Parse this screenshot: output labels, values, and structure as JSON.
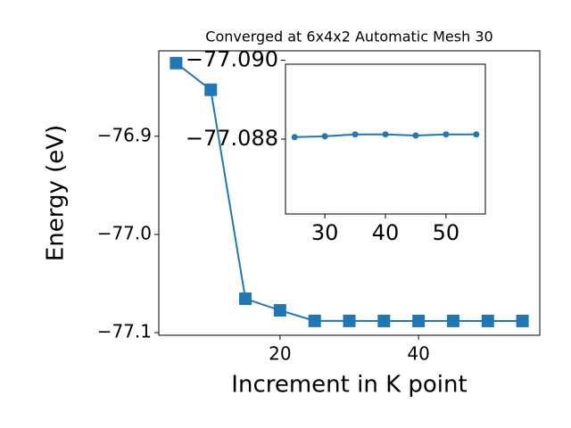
{
  "chart_data": [
    {
      "type": "line",
      "title": "Converged at 6x4x2 Automatic Mesh 30",
      "x_label": "Increment in K point",
      "y_label": "Energy (eV)",
      "x": [
        5,
        10,
        15,
        20,
        25,
        30,
        35,
        40,
        45,
        50,
        55
      ],
      "series": [
        {
          "color": "#1f77b4",
          "marker": "square",
          "values": [
            -76.8255,
            -76.8527,
            -77.0655,
            -77.0773,
            -77.08805,
            -77.08807,
            -77.08812,
            -77.08812,
            -77.08809,
            -77.08812,
            -77.08812
          ]
        }
      ],
      "xlim": [
        2.5,
        57.5
      ],
      "ylim": [
        -77.1027,
        -76.813
      ],
      "xticks": [
        20,
        40
      ],
      "yticks": [
        {
          "value": -76.9,
          "label": "−76.9"
        },
        {
          "value": -77.0,
          "label": "−77.0"
        },
        {
          "value": -77.1,
          "label": "−77.1"
        }
      ]
    },
    {
      "type": "line",
      "x": [
        25,
        30,
        35,
        40,
        45,
        50,
        55
      ],
      "series": [
        {
          "color": "#1f77b4",
          "marker": "circle",
          "values": [
            -77.08805,
            -77.08807,
            -77.08812,
            -77.08812,
            -77.08809,
            -77.08812,
            -77.08812
          ]
        }
      ],
      "xlim": [
        23.5,
        56.5
      ],
      "ylim": [
        -77.0861,
        -77.0899
      ],
      "xticks": [
        30,
        40,
        50
      ],
      "yticks": [
        {
          "value": -77.09,
          "label": "−77.090"
        },
        {
          "value": -77.088,
          "label": "−77.088"
        }
      ]
    }
  ]
}
